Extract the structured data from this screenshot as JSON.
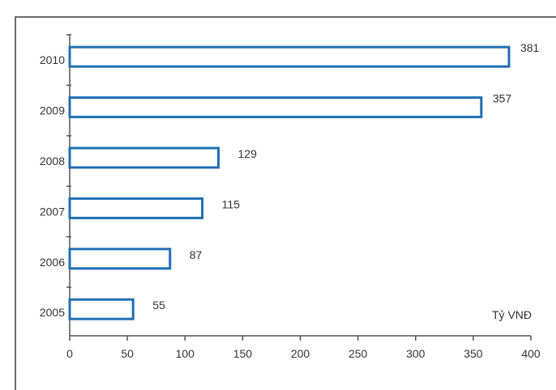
{
  "chart_data": {
    "type": "bar",
    "orientation": "horizontal",
    "categories": [
      "2010",
      "2009",
      "2008",
      "2007",
      "2006",
      "2005"
    ],
    "values": [
      381,
      357,
      129,
      115,
      87,
      55
    ],
    "title": "",
    "xlabel": "",
    "ylabel": "",
    "unit_label": "Tỷ VNĐ",
    "xlim": [
      0,
      400
    ],
    "xticks": [
      0,
      50,
      100,
      150,
      200,
      250,
      300,
      350,
      400
    ],
    "grid": false,
    "legend": "none",
    "bar_stroke_color": "#1f6fb5",
    "bar_fill_color": "#ffffff",
    "axis_color": "#555555"
  }
}
